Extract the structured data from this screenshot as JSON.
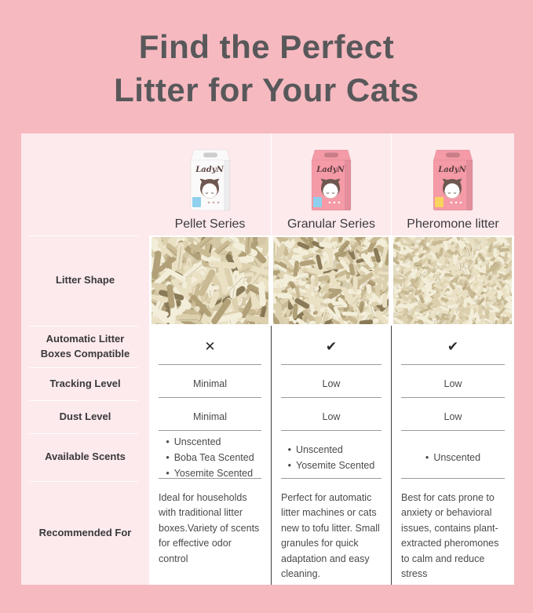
{
  "page": {
    "title_line1": "Find the Perfect",
    "title_line2": "Litter for Your Cats"
  },
  "bullet": "•",
  "row_labels": {
    "shape": "Litter Shape",
    "compat": "Automatic Litter Boxes Compatible",
    "tracking": "Tracking Level",
    "dust": "Dust Level",
    "scents": "Available Scents",
    "recommended": "Recommended For"
  },
  "columns": [
    {
      "name": "Pellet Series",
      "brand": "LadyN",
      "box_color": "#fbfafa",
      "chip_color": "#8fd0ee",
      "compat_mark": "✕",
      "tracking": "Minimal",
      "dust": "Minimal",
      "scents": [
        "Unscented",
        "Boba Tea Scented",
        "Yosemite Scented"
      ],
      "recommended": "Ideal for households with traditional litter boxes.Variety of scents for effective odor control"
    },
    {
      "name": "Granular Series",
      "brand": "LadyN",
      "box_color": "#f59aa7",
      "chip_color": "#8fd0ee",
      "compat_mark": "✔",
      "tracking": "Low",
      "dust": "Low",
      "scents": [
        "Unscented",
        "Yosemite Scented"
      ],
      "recommended": "Perfect for automatic litter machines or cats new to tofu litter. Small granules for quick adaptation and easy cleaning."
    },
    {
      "name": "Pheromone litter",
      "brand": "LadyN",
      "box_color": "#f59aa7",
      "chip_color": "#f8d35e",
      "compat_mark": "✔",
      "tracking": "Low",
      "dust": "Low",
      "scents": [
        "Unscented"
      ],
      "recommended": "Best for cats prone to anxiety or behavioral issues, contains plant-extracted pheromones to calm and reduce stress"
    }
  ],
  "colors": {
    "page_bg": "#f6b9c0",
    "panel_bg": "#fdeaed",
    "title_text": "#58585a",
    "label_text": "#39393b",
    "cell_bg": "#ffffff",
    "divider_dark": "#404042",
    "underline_gray": "#9b9b9b",
    "litter_tan": "#d6caa9"
  }
}
